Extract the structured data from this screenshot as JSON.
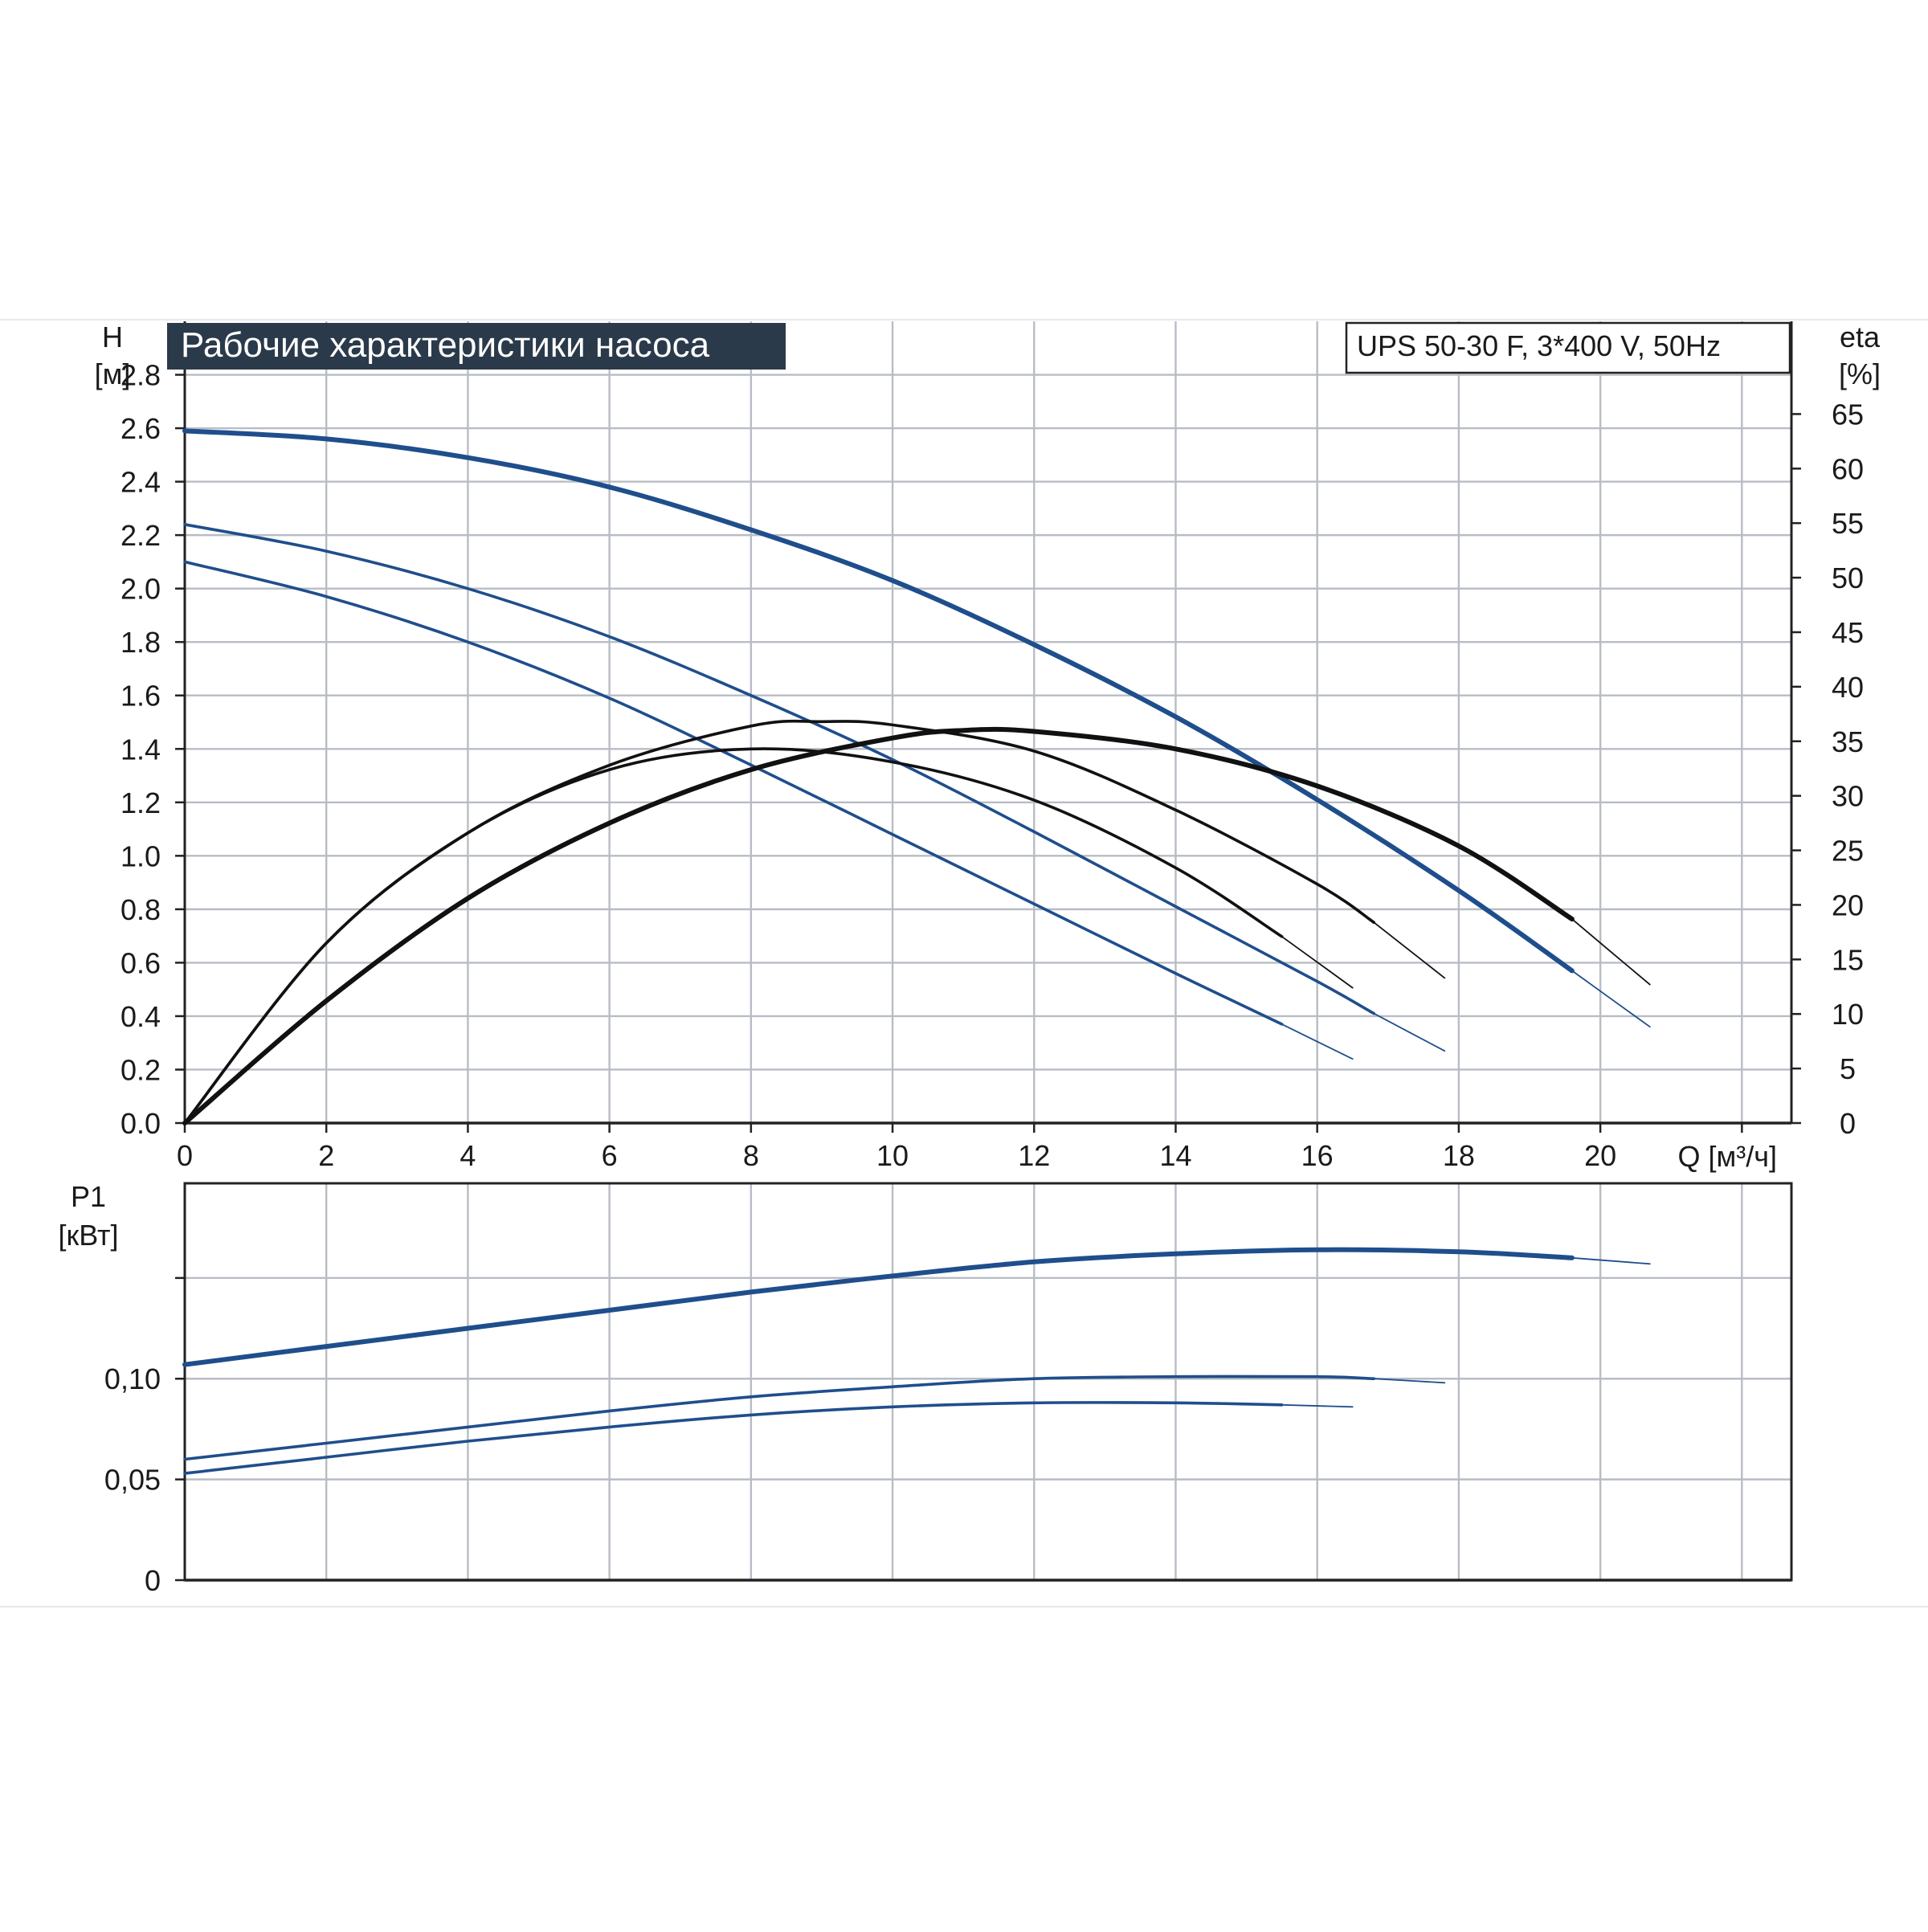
{
  "chart_data": [
    {
      "type": "line",
      "title": "Рабочие характеристики насоса",
      "model_label": "UPS 50-30 F, 3*400 V, 50Hz",
      "ylabel": "H",
      "yunit": "[м]",
      "y2label": "eta",
      "y2unit": "[%]",
      "xlabel": "Q [м³/ч]",
      "xlim": [
        0,
        22.7
      ],
      "ylim": [
        0,
        3.0
      ],
      "y2lim": [
        0,
        73.5
      ],
      "xticks": [
        "0",
        "2",
        "4",
        "6",
        "8",
        "10",
        "12",
        "14",
        "16",
        "18",
        "20"
      ],
      "xtick_values": [
        0,
        2,
        4,
        6,
        8,
        10,
        12,
        14,
        16,
        18,
        20
      ],
      "yticks": [
        "0.0",
        "0.2",
        "0.4",
        "0.6",
        "0.8",
        "1.0",
        "1.2",
        "1.4",
        "1.6",
        "1.8",
        "2.0",
        "2.2",
        "2.4",
        "2.6",
        "2.8"
      ],
      "ytick_values": [
        0,
        0.2,
        0.4,
        0.6,
        0.8,
        1.0,
        1.2,
        1.4,
        1.6,
        1.8,
        2.0,
        2.2,
        2.4,
        2.6,
        2.8
      ],
      "y2ticks": [
        "0",
        "5",
        "10",
        "15",
        "20",
        "25",
        "30",
        "35",
        "40",
        "45",
        "50",
        "55",
        "60",
        "65"
      ],
      "y2tick_values": [
        0,
        5,
        10,
        15,
        20,
        25,
        30,
        35,
        40,
        45,
        50,
        55,
        60,
        65
      ],
      "grid": true,
      "colors": {
        "head": "#1f4e8c",
        "efficiency": "#111111",
        "title_bg": "#2b3a4a"
      },
      "head_curves": [
        {
          "points": [
            [
              0,
              2.59
            ],
            [
              2,
              2.56
            ],
            [
              4,
              2.49
            ],
            [
              6,
              2.38
            ],
            [
              8,
              2.22
            ],
            [
              10,
              2.03
            ],
            [
              12,
              1.79
            ],
            [
              14,
              1.52
            ],
            [
              16,
              1.21
            ],
            [
              18,
              0.87
            ],
            [
              19.6,
              0.57
            ]
          ],
          "tail": [
            [
              19.6,
              0.57
            ],
            [
              20.7,
              0.36
            ]
          ],
          "weight": "thick"
        },
        {
          "points": [
            [
              0,
              2.24
            ],
            [
              2,
              2.14
            ],
            [
              4,
              2.0
            ],
            [
              6,
              1.82
            ],
            [
              8,
              1.6
            ],
            [
              10,
              1.36
            ],
            [
              12,
              1.09
            ],
            [
              14,
              0.81
            ],
            [
              16,
              0.53
            ],
            [
              16.8,
              0.41
            ]
          ],
          "tail": [
            [
              16.8,
              0.41
            ],
            [
              17.8,
              0.27
            ]
          ],
          "weight": "thin"
        },
        {
          "points": [
            [
              0,
              2.1
            ],
            [
              2,
              1.97
            ],
            [
              4,
              1.8
            ],
            [
              6,
              1.59
            ],
            [
              8,
              1.34
            ],
            [
              10,
              1.08
            ],
            [
              12,
              0.82
            ],
            [
              14,
              0.56
            ],
            [
              15.5,
              0.37
            ]
          ],
          "tail": [
            [
              15.5,
              0.37
            ],
            [
              16.5,
              0.24
            ]
          ],
          "weight": "thin"
        }
      ],
      "efficiency_curves": [
        {
          "points": [
            [
              0,
              0
            ],
            [
              2,
              11.2
            ],
            [
              4,
              20.6
            ],
            [
              6,
              27.5
            ],
            [
              8,
              32.4
            ],
            [
              10,
              35.3
            ],
            [
              11,
              36.0
            ],
            [
              12,
              35.9
            ],
            [
              14,
              34.3
            ],
            [
              16,
              30.9
            ],
            [
              18,
              25.4
            ],
            [
              19.6,
              18.7
            ]
          ],
          "tail": [
            [
              19.6,
              18.7
            ],
            [
              20.7,
              12.7
            ]
          ],
          "weight": "thick"
        },
        {
          "points": [
            [
              0,
              0
            ],
            [
              2,
              16.5
            ],
            [
              4,
              26.6
            ],
            [
              6,
              32.8
            ],
            [
              8,
              36.4
            ],
            [
              9,
              36.8
            ],
            [
              10,
              36.5
            ],
            [
              12,
              34.1
            ],
            [
              14,
              28.7
            ],
            [
              16,
              21.9
            ],
            [
              16.8,
              18.4
            ]
          ],
          "tail": [
            [
              16.8,
              18.4
            ],
            [
              17.8,
              13.3
            ]
          ],
          "weight": "thin"
        },
        {
          "points": [
            [
              0,
              0
            ],
            [
              2,
              16.5
            ],
            [
              4,
              26.6
            ],
            [
              6,
              32.4
            ],
            [
              8,
              34.3
            ],
            [
              10,
              33.1
            ],
            [
              12,
              29.6
            ],
            [
              14,
              23.4
            ],
            [
              15.5,
              17.1
            ]
          ],
          "tail": [
            [
              15.5,
              17.1
            ],
            [
              16.5,
              12.4
            ]
          ],
          "weight": "thin"
        }
      ]
    },
    {
      "type": "line",
      "ylabel": "P1",
      "yunit": "[кВт]",
      "xlim": [
        0,
        22.7
      ],
      "ylim": [
        0,
        0.197
      ],
      "yticks": [
        "0",
        "0,05",
        "0,10"
      ],
      "ytick_values": [
        0,
        0.05,
        0.1
      ],
      "grid_y_values": [
        0,
        0.05,
        0.1,
        0.15
      ],
      "grid": true,
      "colors": {
        "power": "#1f4e8c"
      },
      "power_curves": [
        {
          "points": [
            [
              0,
              0.107
            ],
            [
              2,
              0.116
            ],
            [
              4,
              0.125
            ],
            [
              6,
              0.134
            ],
            [
              8,
              0.143
            ],
            [
              10,
              0.151
            ],
            [
              12,
              0.158
            ],
            [
              14,
              0.162
            ],
            [
              16,
              0.164
            ],
            [
              18,
              0.163
            ],
            [
              19.6,
              0.16
            ]
          ],
          "tail": [
            [
              19.6,
              0.16
            ],
            [
              20.7,
              0.157
            ]
          ],
          "weight": "thick"
        },
        {
          "points": [
            [
              0,
              0.06
            ],
            [
              2,
              0.068
            ],
            [
              4,
              0.076
            ],
            [
              6,
              0.084
            ],
            [
              8,
              0.091
            ],
            [
              10,
              0.096
            ],
            [
              12,
              0.1
            ],
            [
              14,
              0.101
            ],
            [
              16,
              0.101
            ],
            [
              16.8,
              0.1
            ]
          ],
          "tail": [
            [
              16.8,
              0.1
            ],
            [
              17.8,
              0.098
            ]
          ],
          "weight": "thin"
        },
        {
          "points": [
            [
              0,
              0.053
            ],
            [
              2,
              0.061
            ],
            [
              4,
              0.069
            ],
            [
              6,
              0.076
            ],
            [
              8,
              0.082
            ],
            [
              10,
              0.086
            ],
            [
              12,
              0.088
            ],
            [
              14,
              0.088
            ],
            [
              15.5,
              0.087
            ]
          ],
          "tail": [
            [
              15.5,
              0.087
            ],
            [
              16.5,
              0.086
            ]
          ],
          "weight": "thin"
        }
      ]
    }
  ]
}
